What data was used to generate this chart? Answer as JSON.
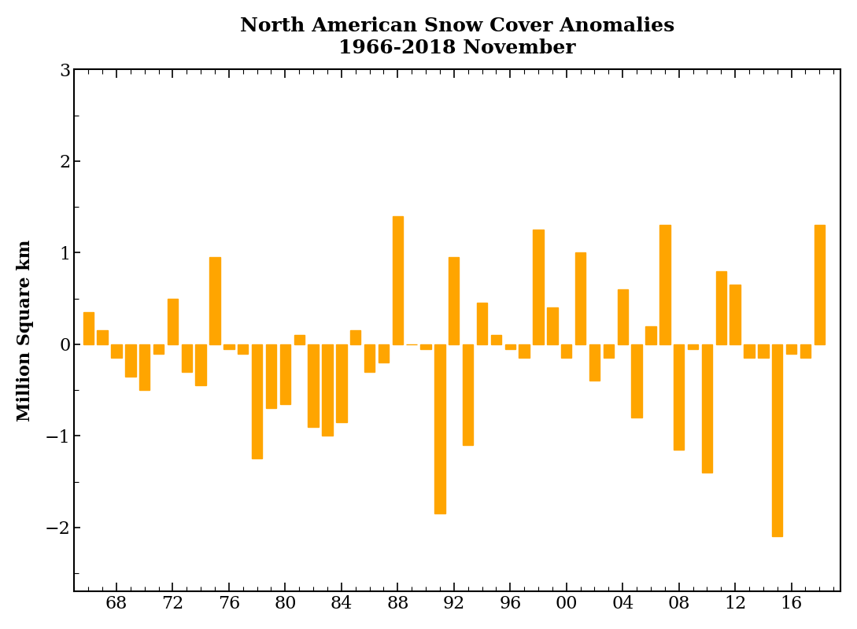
{
  "title_line1": "North American Snow Cover Anomalies",
  "title_line2": "1966-2018 November",
  "ylabel": "Million Square km",
  "bar_color": "#FFA500",
  "ylim": [
    -2.7,
    3.0
  ],
  "yticks": [
    -2,
    -1,
    0,
    1,
    2,
    3
  ],
  "xtick_labels": [
    "68",
    "72",
    "76",
    "80",
    "84",
    "88",
    "92",
    "96",
    "00",
    "04",
    "08",
    "12",
    "16"
  ],
  "xtick_positions": [
    1968,
    1972,
    1976,
    1980,
    1984,
    1988,
    1992,
    1996,
    2000,
    2004,
    2008,
    2012,
    2016
  ],
  "years": [
    1966,
    1967,
    1968,
    1969,
    1970,
    1971,
    1972,
    1973,
    1974,
    1975,
    1976,
    1977,
    1978,
    1979,
    1980,
    1981,
    1982,
    1983,
    1984,
    1985,
    1986,
    1987,
    1988,
    1989,
    1990,
    1991,
    1992,
    1993,
    1994,
    1995,
    1996,
    1997,
    1998,
    1999,
    2000,
    2001,
    2002,
    2003,
    2004,
    2005,
    2006,
    2007,
    2008,
    2009,
    2010,
    2011,
    2012,
    2013,
    2014,
    2015,
    2016,
    2017,
    2018
  ],
  "values": [
    0.35,
    0.15,
    -0.15,
    -0.35,
    -0.5,
    -0.1,
    0.5,
    -0.3,
    -0.45,
    0.95,
    -0.05,
    -0.1,
    -1.25,
    -0.7,
    -0.65,
    0.1,
    -0.9,
    -1.0,
    -0.85,
    0.15,
    -0.3,
    -0.2,
    1.4,
    0.0,
    -0.05,
    -1.85,
    0.95,
    -1.1,
    0.45,
    0.1,
    -0.05,
    -0.15,
    1.25,
    0.4,
    -0.15,
    1.0,
    -0.4,
    -0.15,
    0.6,
    -0.8,
    0.2,
    1.3,
    -1.15,
    -0.05,
    -1.4,
    0.8,
    0.65,
    -0.15,
    -0.15,
    -2.1,
    -0.1,
    -0.15,
    1.3
  ]
}
